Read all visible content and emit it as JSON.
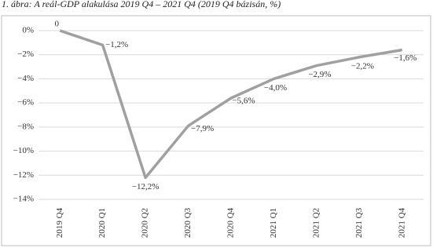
{
  "chart_data": {
    "type": "line",
    "title": "1. ábra: A reál-GDP alakulása 2019 Q4 – 2021 Q4 (2019 Q4 bázisán, %)",
    "categories": [
      "2019 Q4",
      "2020 Q1",
      "2020 Q2",
      "2020 Q3",
      "2020 Q4",
      "2021 Q1",
      "2021 Q2",
      "2021 Q3",
      "2021 Q4"
    ],
    "values": [
      0,
      -1.2,
      -12.2,
      -7.9,
      -5.6,
      -4.0,
      -2.9,
      -2.2,
      -1.6
    ],
    "value_labels": [
      "0",
      "−1,2%",
      "−12,2%",
      "−7,9%",
      "−5,6%",
      "−4,0%",
      "−2,9%",
      "−2,2%",
      "−1,6%"
    ],
    "color": "#a0a0a0",
    "ylim": [
      -14,
      0
    ],
    "yticks": [
      {
        "value": 0,
        "label": "0%"
      },
      {
        "value": -2,
        "label": "−2%"
      },
      {
        "value": -4,
        "label": "−4%"
      },
      {
        "value": -6,
        "label": "−6%"
      },
      {
        "value": -8,
        "label": "−8%"
      },
      {
        "value": -10,
        "label": "−10%"
      },
      {
        "value": -12,
        "label": "−12%"
      },
      {
        "value": -14,
        "label": "−14%"
      }
    ],
    "grid": true
  }
}
